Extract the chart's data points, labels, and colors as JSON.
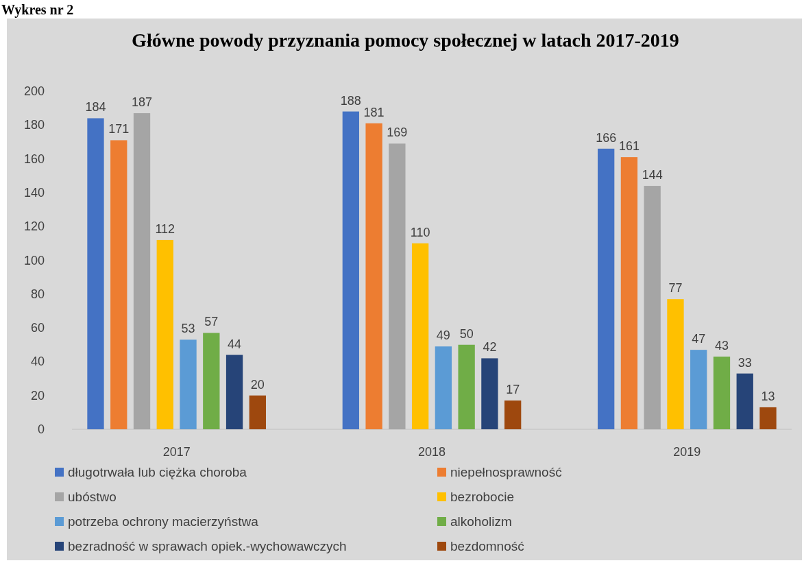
{
  "chart_data": {
    "type": "bar",
    "title": "Główne powody przyznania pomocy społecznej w latach 2017-2019",
    "annotations": [
      "Wykres nr 2"
    ],
    "categories": [
      "2017",
      "2018",
      "2019"
    ],
    "series": [
      {
        "name": "długotrwała lub ciężka choroba",
        "color": "#4472c4",
        "values": [
          184,
          188,
          166
        ]
      },
      {
        "name": "niepełnosprawność",
        "color": "#ed7d31",
        "values": [
          171,
          181,
          161
        ]
      },
      {
        "name": "ubóstwo",
        "color": "#a5a5a5",
        "values": [
          187,
          169,
          144
        ]
      },
      {
        "name": "bezrobocie",
        "color": "#ffc000",
        "values": [
          112,
          110,
          77
        ]
      },
      {
        "name": "potrzeba ochrony macierzyństwa",
        "color": "#5b9bd5",
        "values": [
          53,
          49,
          47
        ]
      },
      {
        "name": "alkoholizm",
        "color": "#70ad47",
        "values": [
          57,
          50,
          43
        ]
      },
      {
        "name": "bezradność w sprawach opiek.-wychowawczych",
        "color": "#264478",
        "values": [
          44,
          42,
          33
        ]
      },
      {
        "name": "bezdomność",
        "color": "#9e480e",
        "values": [
          20,
          17,
          13
        ]
      }
    ],
    "ylim": [
      0,
      200
    ],
    "yticks": [
      0,
      20,
      40,
      60,
      80,
      100,
      120,
      140,
      160,
      180,
      200
    ],
    "grid": false,
    "legend": "bottom",
    "data_labels": true
  }
}
